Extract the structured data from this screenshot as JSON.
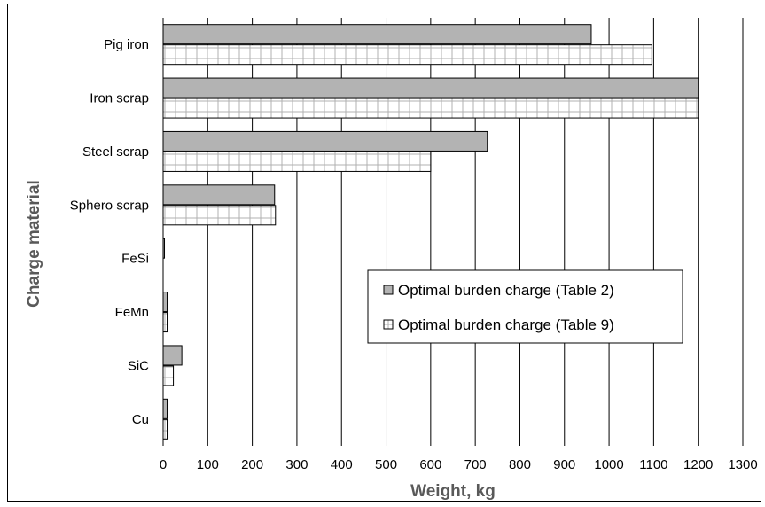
{
  "chart_data": {
    "type": "bar",
    "orientation": "horizontal",
    "categories": [
      "Pig iron",
      "Iron scrap",
      "Steel scrap",
      "Sphero scrap",
      "FeSi",
      "FeMn",
      "SiC",
      "Cu"
    ],
    "series": [
      {
        "name": "Optimal burden charge (Table 2)",
        "values": [
          960,
          1200,
          727,
          250,
          3,
          9,
          42,
          9
        ],
        "color": "#b3b3b3",
        "pattern": "solid"
      },
      {
        "name": "Optimal burden charge (Table 9)",
        "values": [
          1096,
          1200,
          600,
          252,
          0,
          9,
          23,
          9
        ],
        "color": "#ffffff",
        "pattern": "grid"
      }
    ],
    "xlabel": "Weight, kg",
    "ylabel": "Charge material",
    "xlim": [
      0,
      1300
    ],
    "xticks": [
      "0",
      "100",
      "200",
      "300",
      "400",
      "500",
      "600",
      "700",
      "800",
      "900",
      "1000",
      "1100",
      "1200",
      "1300"
    ],
    "grid": "vertical",
    "legend_position": "center-right"
  },
  "colors": {
    "grid": "#000000",
    "axis_title": "#595959",
    "bar_outline": "#000000",
    "grid_pattern": "#b0b0b0"
  }
}
